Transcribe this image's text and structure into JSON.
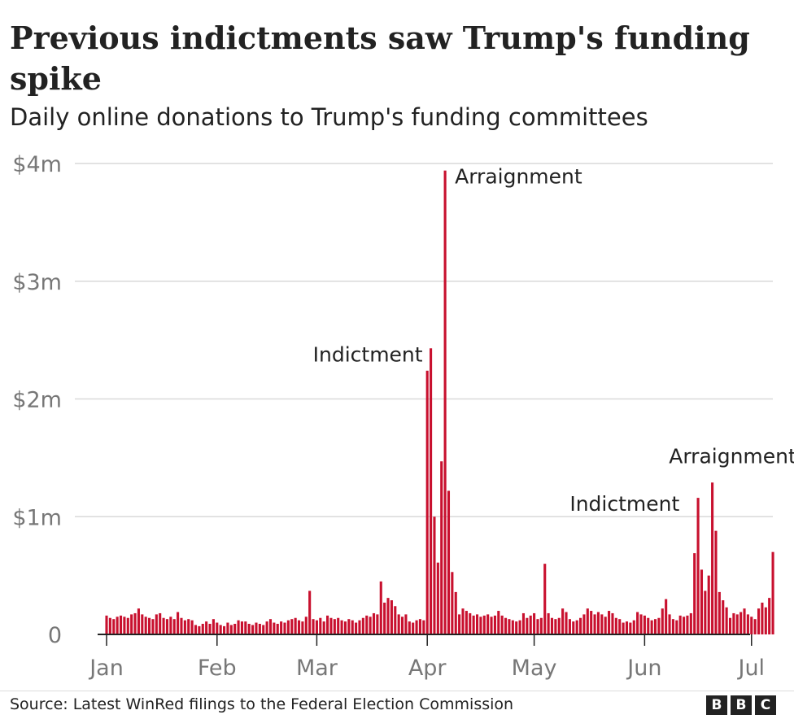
{
  "title": "Previous indictments saw Trump's funding spike",
  "subtitle": "Daily online donations to Trump's funding committees",
  "source": "Source: Latest WinRed filings to the Federal Election Commission",
  "logo": [
    "B",
    "B",
    "C"
  ],
  "colors": {
    "bar": "#c8102e",
    "grid": "#d9d9d9",
    "axis": "#222222",
    "tick_text": "#777777"
  },
  "chart_data": {
    "type": "bar",
    "title": "Previous indictments saw Trump's funding spike",
    "subtitle": "Daily online donations to Trump's funding committees",
    "xlabel": "",
    "ylabel": "",
    "x_start": "Jan 1",
    "ylim": [
      0,
      4
    ],
    "y_ticks": [
      {
        "value": 0,
        "label": "0"
      },
      {
        "value": 1,
        "label": "$1m"
      },
      {
        "value": 2,
        "label": "$2m"
      },
      {
        "value": 3,
        "label": "$3m"
      },
      {
        "value": 4,
        "label": "$4m"
      }
    ],
    "x_ticks": [
      {
        "day": 0,
        "label": "Jan"
      },
      {
        "day": 31,
        "label": "Feb"
      },
      {
        "day": 59,
        "label": "Mar"
      },
      {
        "day": 90,
        "label": "Apr"
      },
      {
        "day": 120,
        "label": "May"
      },
      {
        "day": 151,
        "label": "Jun"
      },
      {
        "day": 181,
        "label": "Jul"
      }
    ],
    "grid": true,
    "values": [
      0.16,
      0.14,
      0.13,
      0.15,
      0.16,
      0.15,
      0.14,
      0.17,
      0.18,
      0.22,
      0.17,
      0.15,
      0.14,
      0.13,
      0.17,
      0.18,
      0.14,
      0.13,
      0.15,
      0.13,
      0.19,
      0.14,
      0.12,
      0.13,
      0.12,
      0.08,
      0.07,
      0.09,
      0.11,
      0.09,
      0.13,
      0.1,
      0.08,
      0.07,
      0.1,
      0.08,
      0.09,
      0.12,
      0.11,
      0.11,
      0.09,
      0.08,
      0.1,
      0.09,
      0.08,
      0.11,
      0.13,
      0.1,
      0.09,
      0.11,
      0.1,
      0.12,
      0.13,
      0.14,
      0.12,
      0.11,
      0.15,
      0.37,
      0.13,
      0.12,
      0.14,
      0.11,
      0.16,
      0.14,
      0.13,
      0.14,
      0.12,
      0.11,
      0.13,
      0.12,
      0.1,
      0.12,
      0.14,
      0.16,
      0.15,
      0.18,
      0.17,
      0.45,
      0.27,
      0.31,
      0.29,
      0.24,
      0.17,
      0.15,
      0.17,
      0.11,
      0.1,
      0.12,
      0.13,
      0.12,
      2.24,
      2.43,
      1.0,
      0.61,
      1.47,
      3.94,
      1.22,
      0.53,
      0.36,
      0.17,
      0.22,
      0.2,
      0.18,
      0.16,
      0.17,
      0.15,
      0.16,
      0.17,
      0.15,
      0.16,
      0.2,
      0.16,
      0.14,
      0.13,
      0.12,
      0.11,
      0.12,
      0.18,
      0.14,
      0.16,
      0.18,
      0.13,
      0.14,
      0.6,
      0.18,
      0.14,
      0.13,
      0.14,
      0.22,
      0.19,
      0.13,
      0.11,
      0.12,
      0.14,
      0.17,
      0.22,
      0.2,
      0.17,
      0.19,
      0.17,
      0.15,
      0.2,
      0.18,
      0.14,
      0.13,
      0.1,
      0.11,
      0.1,
      0.12,
      0.19,
      0.17,
      0.16,
      0.14,
      0.12,
      0.13,
      0.14,
      0.22,
      0.3,
      0.17,
      0.13,
      0.12,
      0.16,
      0.15,
      0.16,
      0.18,
      0.69,
      1.16,
      0.55,
      0.37,
      0.5,
      1.29,
      0.88,
      0.36,
      0.29,
      0.23,
      0.14,
      0.18,
      0.17,
      0.19,
      0.22,
      0.17,
      0.15,
      0.13,
      0.22,
      0.27,
      0.23,
      0.31,
      0.7
    ],
    "annotations": [
      {
        "label": "Indictment",
        "day": 91,
        "value": 2.43
      },
      {
        "label": "Arraignment",
        "day": 95,
        "value": 3.94
      },
      {
        "label": "Indictment",
        "day": 164,
        "value": 1.16
      },
      {
        "label": "Arraignment",
        "day": 168,
        "value": 1.29
      }
    ]
  }
}
